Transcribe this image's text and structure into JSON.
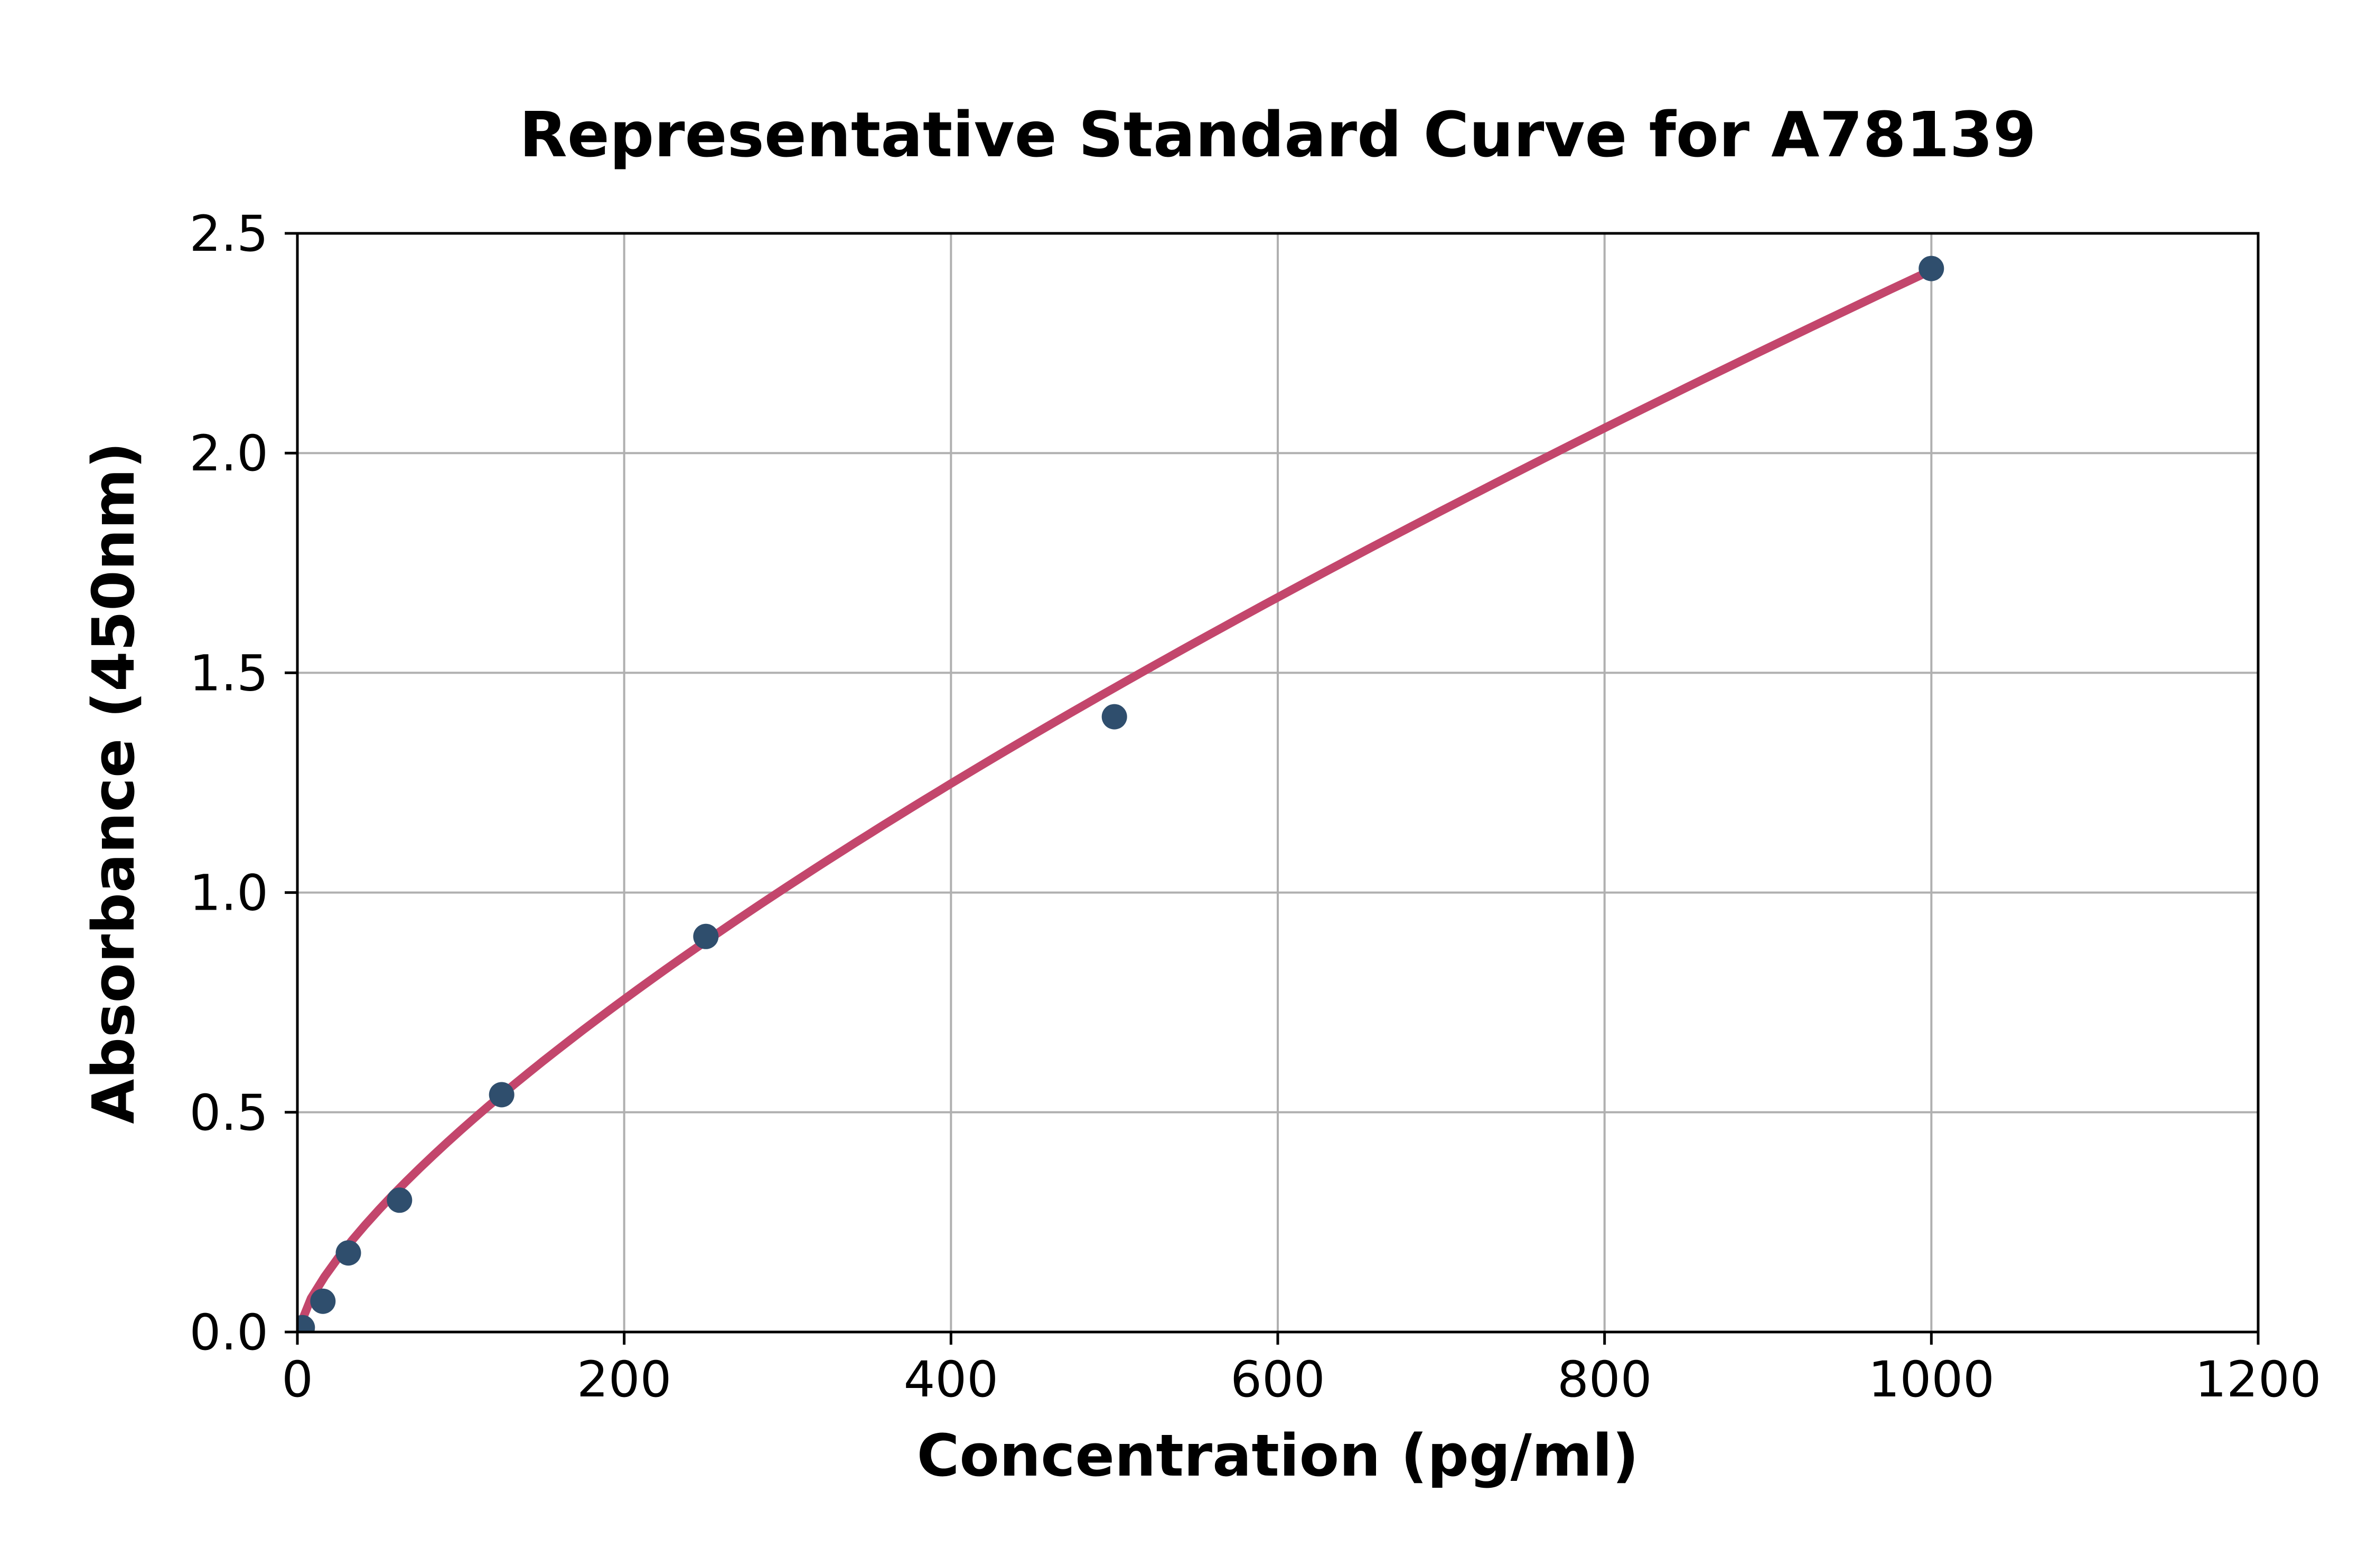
{
  "figure": {
    "background": "#FFFFFF"
  },
  "chart_data": {
    "type": "scatter",
    "title": "Representative Standard Curve for A78139",
    "xlabel": "Concentration (pg/ml)",
    "ylabel": "Absorbance (450nm)",
    "xlim": [
      0,
      1200
    ],
    "ylim": [
      0,
      2.5
    ],
    "xticks": [
      0,
      200,
      400,
      600,
      800,
      1000,
      1200
    ],
    "xtick_labels": [
      "0",
      "200",
      "400",
      "600",
      "800",
      "1000",
      "1200"
    ],
    "yticks": [
      0,
      0.5,
      1.0,
      1.5,
      2.0,
      2.5
    ],
    "ytick_labels": [
      "0.0",
      "0.5",
      "1.0",
      "1.5",
      "2.0",
      "2.5"
    ],
    "grid": true,
    "legend": false,
    "series": [
      {
        "name": "standard-points",
        "type": "scatter",
        "x": [
          3,
          15.6,
          31.2,
          62.5,
          125,
          250,
          500,
          1000
        ],
        "y": [
          0.01,
          0.07,
          0.18,
          0.3,
          0.54,
          0.9,
          1.4,
          2.42
        ],
        "color": "#2F4E6D"
      },
      {
        "name": "fitted-curve",
        "type": "line",
        "fit_model": "power",
        "fit_a": 0.0166,
        "fit_b": 0.721,
        "x_start": 0,
        "x_end": 1000,
        "color": "#C3466C"
      }
    ],
    "grid_color": "#B0B0B0",
    "axis_color": "#000000"
  }
}
